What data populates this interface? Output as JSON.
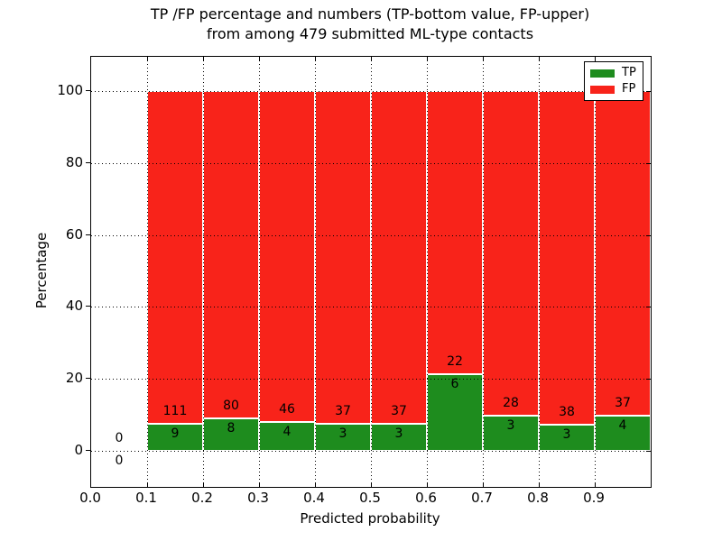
{
  "title": {
    "line1": "TP /FP percentage and numbers (TP-bottom value, FP-upper)",
    "line2": "from among 479 submitted ML-type contacts"
  },
  "colors": {
    "tp": "#1e8c1e",
    "fp": "#f8231a",
    "bar_edge": "#ffffff",
    "grid": "#000000",
    "background": "#ffffff"
  },
  "chart_data": {
    "type": "bar",
    "subtype": "stacked-percentage",
    "title": "TP /FP percentage and numbers (TP-bottom value, FP-upper) from among 479 submitted ML-type contacts",
    "xlabel": "Predicted probability",
    "ylabel": "Percentage",
    "xlim": [
      0.0,
      1.0
    ],
    "ylim": [
      -10.5,
      109.5
    ],
    "grid": "dotted, drawn above bars",
    "legend_position": "upper right",
    "legend": [
      {
        "label": "TP",
        "color": "#1e8c1e"
      },
      {
        "label": "FP",
        "color": "#f8231a"
      }
    ],
    "x_tick_labels": [
      "0.0",
      "0.1",
      "0.2",
      "0.3",
      "0.4",
      "0.5",
      "0.6",
      "0.7",
      "0.8",
      "0.9"
    ],
    "y_ticks": [
      0,
      20,
      40,
      60,
      80,
      100
    ],
    "bins": [
      {
        "x0": 0.0,
        "x1": 0.1,
        "tp": 0,
        "fp": 0
      },
      {
        "x0": 0.1,
        "x1": 0.2,
        "tp": 9,
        "fp": 111
      },
      {
        "x0": 0.2,
        "x1": 0.3,
        "tp": 8,
        "fp": 80
      },
      {
        "x0": 0.3,
        "x1": 0.4,
        "tp": 4,
        "fp": 46
      },
      {
        "x0": 0.4,
        "x1": 0.5,
        "tp": 3,
        "fp": 37
      },
      {
        "x0": 0.5,
        "x1": 0.6,
        "tp": 3,
        "fp": 37
      },
      {
        "x0": 0.6,
        "x1": 0.7,
        "tp": 6,
        "fp": 22
      },
      {
        "x0": 0.7,
        "x1": 0.8,
        "tp": 3,
        "fp": 28
      },
      {
        "x0": 0.8,
        "x1": 0.9,
        "tp": 3,
        "fp": 38
      },
      {
        "x0": 0.9,
        "x1": 1.0,
        "tp": 4,
        "fp": 37
      }
    ],
    "note": "Bars show TP percentage (green, bottom) and FP percentage (red, top) per predicted-probability bin; labels are raw counts. Bin 0.0-0.1 has no contacts."
  }
}
